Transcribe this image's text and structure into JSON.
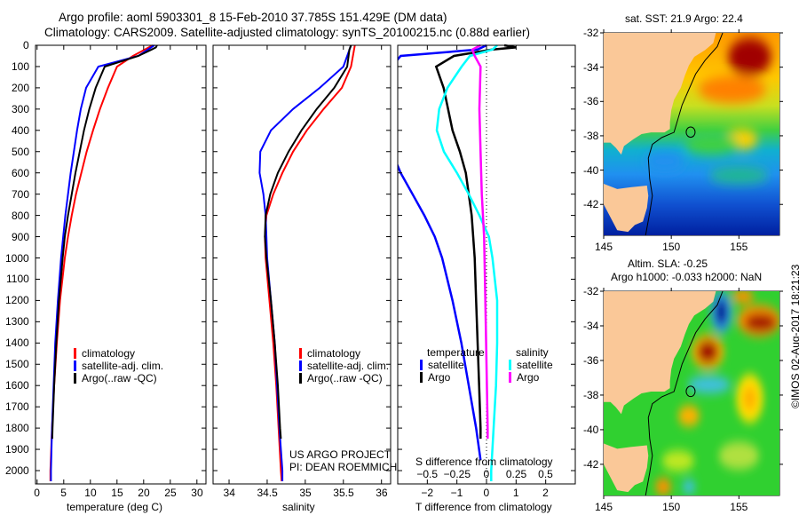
{
  "header": {
    "line1": "Argo profile: aoml 5903301_8 15-Feb-2010 37.785S 151.429E (DM data)",
    "line2": "Climatology: CARS2009. Satellite-adjusted climatology: synTS_20100215.nc (0.88d earlier)"
  },
  "colors": {
    "climatology": "#ff0000",
    "satellite": "#0000ff",
    "argo": "#000000",
    "sal_satellite": "#00ffff",
    "sal_argo": "#ff00ff"
  },
  "credit": {
    "line1": "US ARGO PROJECT",
    "line2": "PI: DEAN ROEMMICH"
  },
  "timestamp": "©IMOS 02-Aug-2017 18:21:23",
  "chart_data": [
    {
      "type": "line",
      "name": "temperature-profile",
      "xlabel": "temperature (deg C)",
      "ylabel": "",
      "xlim": [
        -0.3,
        31.7
      ],
      "ylim": [
        2062,
        0
      ],
      "xticks": [
        0,
        5,
        10,
        15,
        20,
        25,
        30
      ],
      "yticks": [
        0,
        100,
        200,
        300,
        400,
        500,
        600,
        700,
        800,
        900,
        1000,
        1100,
        1200,
        1300,
        1400,
        1500,
        1600,
        1700,
        1800,
        1900,
        2000
      ],
      "legend": [
        "climatology",
        "satellite-adj. clim.",
        "Argo(..raw -QC)"
      ],
      "series": [
        {
          "name": "climatology",
          "depth": [
            0,
            50,
            100,
            200,
            300,
            400,
            500,
            600,
            700,
            800,
            900,
            1000,
            1200,
            1400,
            1600,
            1800,
            2000,
            2050
          ],
          "values": [
            21.7,
            18,
            15,
            13.3,
            11.8,
            10.5,
            9.3,
            8.3,
            7.3,
            6.5,
            5.8,
            5.2,
            4.3,
            3.7,
            3.2,
            2.8,
            2.5,
            2.5
          ]
        },
        {
          "name": "satellite-adj. clim.",
          "depth": [
            0,
            50,
            100,
            200,
            300,
            400,
            500,
            600,
            700,
            800,
            900,
            1000,
            1200,
            1400,
            1600,
            1800,
            2000,
            2050
          ],
          "values": [
            22,
            19,
            11.5,
            9.2,
            8.2,
            7.5,
            6.9,
            6.3,
            5.8,
            5.3,
            4.9,
            4.5,
            3.9,
            3.4,
            3.1,
            2.8,
            2.6,
            2.6
          ]
        },
        {
          "name": "Argo",
          "depth": [
            0,
            10,
            20,
            50,
            100,
            200,
            300,
            400,
            500,
            600,
            700,
            800,
            900,
            1000,
            1200,
            1400,
            1600,
            1800,
            1850
          ],
          "values": [
            22.5,
            22.3,
            21.5,
            19,
            12.7,
            11,
            9.8,
            8.8,
            8,
            7.2,
            6.5,
            5.8,
            5.2,
            4.8,
            4.1,
            3.6,
            3.2,
            2.9,
            2.85
          ]
        }
      ]
    },
    {
      "type": "line",
      "name": "salinity-profile",
      "xlabel": "salinity",
      "xlim": [
        33.79,
        36.12
      ],
      "ylim": [
        2062,
        0
      ],
      "xticks": [
        34,
        34.5,
        35,
        35.5,
        36
      ],
      "legend": [
        "climatology",
        "satellite-adj. clim.",
        "Argo(..raw -QC)"
      ],
      "series": [
        {
          "name": "climatology",
          "depth": [
            0,
            100,
            200,
            300,
            400,
            500,
            600,
            700,
            800,
            900,
            1000,
            1200,
            1400,
            1600,
            1800,
            2000,
            2050
          ],
          "values": [
            35.65,
            35.6,
            35.48,
            35.24,
            35.02,
            34.84,
            34.7,
            34.58,
            34.49,
            34.47,
            34.48,
            34.53,
            34.58,
            34.62,
            34.65,
            34.68,
            34.69
          ]
        },
        {
          "name": "satellite-adj. clim.",
          "depth": [
            0,
            100,
            200,
            300,
            400,
            500,
            600,
            700,
            800,
            900,
            1000,
            1200,
            1400,
            1600,
            1800,
            2000,
            2050
          ],
          "values": [
            35.6,
            35.5,
            35.19,
            34.84,
            34.55,
            34.41,
            34.4,
            34.45,
            34.48,
            34.49,
            34.5,
            34.55,
            34.6,
            34.63,
            34.66,
            34.7,
            34.7
          ]
        },
        {
          "name": "Argo",
          "depth": [
            0,
            20,
            100,
            200,
            300,
            400,
            500,
            600,
            700,
            800,
            900,
            1000,
            1200,
            1400,
            1600,
            1800,
            1850
          ],
          "values": [
            35.6,
            35.58,
            35.55,
            35.38,
            35.15,
            34.95,
            34.78,
            34.64,
            34.54,
            34.48,
            34.47,
            34.49,
            34.55,
            34.6,
            34.64,
            34.67,
            34.68
          ]
        }
      ]
    },
    {
      "type": "line",
      "name": "difference-profile",
      "xlabel": "T difference from climatology",
      "x2label": "S difference from climatology",
      "xlim": [
        -3,
        3
      ],
      "x2lim": [
        -0.75,
        0.75
      ],
      "ylim": [
        2062,
        0
      ],
      "xticks": [
        -2,
        -1,
        0,
        1,
        2
      ],
      "x2ticks": [
        -0.5,
        -0.25,
        0,
        0.25,
        0.5
      ],
      "legend_titles": [
        "temperature",
        "salinity"
      ],
      "legend": [
        "satellite",
        "Argo",
        "satellite",
        "Argo"
      ],
      "series": [
        {
          "name": "T satellite",
          "axis": "T",
          "depth": [
            0,
            20,
            50,
            100,
            150,
            200,
            300,
            400,
            500,
            600,
            700,
            800,
            900,
            1000,
            1200,
            1400,
            1600,
            1800,
            1950
          ],
          "values": [
            0,
            -0.3,
            -2.9,
            -3.2,
            -3.5,
            -3.5,
            -3.5,
            -3.4,
            -3.2,
            -2.9,
            -2.5,
            -2.1,
            -1.75,
            -1.5,
            -1.15,
            -0.85,
            -0.6,
            -0.35,
            -0.2
          ]
        },
        {
          "name": "T Argo",
          "axis": "T",
          "depth": [
            0,
            10,
            20,
            50,
            100,
            200,
            300,
            400,
            500,
            600,
            800,
            1000,
            1200,
            1400,
            1600,
            1800,
            1850
          ],
          "values": [
            0.6,
            1,
            0.2,
            -1.1,
            -1.7,
            -1.45,
            -1.3,
            -1.15,
            -0.9,
            -0.7,
            -0.5,
            -0.4,
            -0.35,
            -0.3,
            -0.25,
            -0.2,
            -0.2
          ]
        },
        {
          "name": "S satellite",
          "axis": "S",
          "depth": [
            0,
            20,
            50,
            100,
            200,
            300,
            400,
            500,
            600,
            700,
            800,
            900,
            1000,
            1200,
            1400,
            1600,
            1800,
            2000,
            2050
          ],
          "values": [
            0.09,
            0.05,
            -0.14,
            -0.21,
            -0.33,
            -0.4,
            -0.42,
            -0.36,
            -0.25,
            -0.15,
            -0.06,
            0.02,
            0.05,
            0.09,
            0.09,
            0.08,
            0.06,
            0.04,
            0.04
          ]
        },
        {
          "name": "S Argo",
          "axis": "S",
          "depth": [
            0,
            20,
            50,
            100,
            300,
            500,
            700,
            900,
            1200,
            1500,
            1800,
            1850
          ],
          "values": [
            -0.05,
            -0.12,
            -0.1,
            -0.05,
            -0.06,
            -0.05,
            -0.04,
            -0.02,
            -0.01,
            0,
            0.01,
            0.01
          ]
        }
      ]
    }
  ],
  "maps": [
    {
      "name": "sst-map",
      "title": "sat. SST: 21.9 Argo: 22.4",
      "lat_ticks": [
        "-32",
        "-34",
        "-36",
        "-38",
        "-40",
        "-42"
      ],
      "lon_ticks": [
        "145",
        "150",
        "155"
      ]
    },
    {
      "name": "sla-map",
      "title": "Altim. SLA: -0.25",
      "subtitle": "Argo h1000: -0.033 h2000: NaN",
      "lat_ticks": [
        "-32",
        "-34",
        "-36",
        "-38",
        "-40",
        "-42"
      ],
      "lon_ticks": [
        "145",
        "150",
        "155"
      ]
    }
  ]
}
